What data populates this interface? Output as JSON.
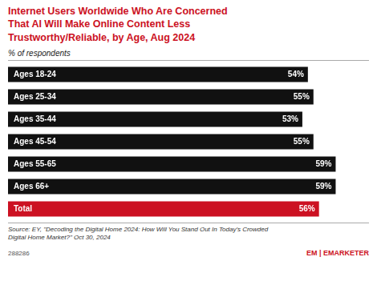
{
  "chart_data": {
    "type": "bar",
    "orientation": "horizontal",
    "title": "Internet Users Worldwide Who Are Concerned\nThat AI Will Make Online Content Less\nTrustworthy/Reliable, by Age, Aug 2024",
    "subtitle": "% of respondents",
    "categories": [
      "Ages 18-24",
      "Ages 25-34",
      "Ages 35-44",
      "Ages 45-54",
      "Ages 55-65",
      "Ages 66+",
      "Total"
    ],
    "values": [
      54,
      55,
      53,
      55,
      59,
      59,
      56
    ],
    "value_labels": [
      "54%",
      "55%",
      "53%",
      "55%",
      "59%",
      "59%",
      "56%"
    ],
    "colors": [
      "#111111",
      "#111111",
      "#111111",
      "#111111",
      "#111111",
      "#111111",
      "#cc1122"
    ],
    "xlim": [
      0,
      65
    ],
    "grid": false,
    "tick_labels": false,
    "data_labels": true,
    "source": "Source: EY, \"Decoding the Digital Home 2024: How Will You Stand Out In Today's Crowded\nDigital Home Market?\" Oct 30, 2024",
    "footnote": "288286",
    "annotations": [
      "EM | EMARKETER"
    ]
  }
}
